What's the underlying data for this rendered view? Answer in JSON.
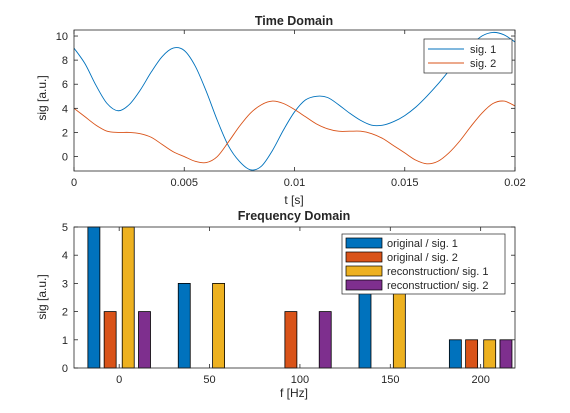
{
  "chart_data": [
    {
      "type": "line",
      "title": "Time Domain",
      "xlabel": "t [s]",
      "ylabel": "sig [a.u.]",
      "xlim": [
        0,
        0.02
      ],
      "ylim": [
        -1.2,
        10.5
      ],
      "xticks": [
        0,
        0.005,
        0.01,
        0.015,
        0.02
      ],
      "xtick_labels": [
        "0",
        "0.005",
        "0.01",
        "0.015",
        "0.02"
      ],
      "yticks": [
        0,
        2,
        4,
        6,
        8,
        10
      ],
      "ytick_labels": [
        "0",
        "2",
        "4",
        "6",
        "8",
        "10"
      ],
      "legend_position": "top-right",
      "grid": false,
      "series": [
        {
          "name": "sig. 1",
          "color": "#0072BD",
          "x": [
            0,
            0.0005,
            0.001,
            0.0015,
            0.002,
            0.0025,
            0.003,
            0.0035,
            0.004,
            0.0045,
            0.005,
            0.0055,
            0.006,
            0.0065,
            0.007,
            0.0075,
            0.008,
            0.0085,
            0.009,
            0.0095,
            0.01,
            0.0105,
            0.011,
            0.0115,
            0.012,
            0.0125,
            0.013,
            0.0135,
            0.014,
            0.0145,
            0.015,
            0.0155,
            0.016,
            0.0165,
            0.017,
            0.0175,
            0.018,
            0.0185,
            0.019,
            0.0195,
            0.02
          ],
          "y": [
            9.0,
            7.7,
            5.9,
            4.4,
            3.8,
            4.3,
            5.5,
            7.0,
            8.3,
            9.0,
            8.8,
            7.5,
            5.4,
            3.0,
            0.9,
            -0.4,
            -1.1,
            -0.8,
            0.5,
            2.2,
            3.7,
            4.7,
            5.0,
            4.9,
            4.3,
            3.6,
            3.0,
            2.6,
            2.6,
            2.9,
            3.4,
            4.1,
            5.0,
            6.0,
            7.1,
            8.2,
            9.2,
            10.0,
            10.3,
            10.1,
            9.5
          ]
        },
        {
          "name": "sig. 2",
          "color": "#D95319",
          "x": [
            0,
            0.0005,
            0.001,
            0.0015,
            0.002,
            0.0025,
            0.003,
            0.0035,
            0.004,
            0.0045,
            0.005,
            0.0055,
            0.006,
            0.0065,
            0.007,
            0.0075,
            0.008,
            0.0085,
            0.009,
            0.0095,
            0.01,
            0.0105,
            0.011,
            0.0115,
            0.012,
            0.0125,
            0.013,
            0.0135,
            0.014,
            0.0145,
            0.015,
            0.0155,
            0.016,
            0.0165,
            0.017,
            0.0175,
            0.018,
            0.0185,
            0.019,
            0.0195,
            0.02
          ],
          "y": [
            4.0,
            3.3,
            2.6,
            2.1,
            2.0,
            2.0,
            1.9,
            1.6,
            1.0,
            0.4,
            0.0,
            -0.4,
            -0.5,
            0.0,
            1.2,
            2.5,
            3.6,
            4.3,
            4.6,
            4.4,
            3.9,
            3.3,
            2.7,
            2.3,
            2.1,
            2.1,
            2.1,
            1.9,
            1.5,
            0.9,
            0.3,
            -0.3,
            -0.6,
            -0.4,
            0.3,
            1.3,
            2.5,
            3.6,
            4.4,
            4.6,
            4.2
          ]
        }
      ]
    },
    {
      "type": "bar",
      "title": "Frequency Domain",
      "xlabel": "f [Hz]",
      "ylabel": "sig [a.u.]",
      "xlim": [
        -25,
        219
      ],
      "ylim": [
        0,
        5
      ],
      "xticks": [
        0,
        50,
        100,
        150,
        200
      ],
      "xtick_labels": [
        "0",
        "50",
        "100",
        "150",
        "200"
      ],
      "yticks": [
        0,
        1,
        2,
        3,
        4,
        5
      ],
      "ytick_labels": [
        "0",
        "1",
        "2",
        "3",
        "4",
        "5"
      ],
      "legend_position": "top-right",
      "grid": false,
      "series": [
        {
          "name": "original / sig. 1",
          "color": "#0072BD",
          "x": [
            -14,
            36,
            136,
            186
          ],
          "values": [
            5,
            3,
            3,
            1
          ]
        },
        {
          "name": "original / sig. 2",
          "color": "#D95319",
          "x": [
            -5,
            95,
            195
          ],
          "values": [
            2,
            2,
            1
          ]
        },
        {
          "name": "reconstruction/ sig. 1",
          "color": "#EDB120",
          "x": [
            5,
            55,
            155,
            205
          ],
          "values": [
            5,
            3,
            3,
            1
          ]
        },
        {
          "name": "reconstruction/ sig. 2",
          "color": "#7E2F8E",
          "x": [
            14,
            114,
            214
          ],
          "values": [
            2,
            2,
            1
          ]
        }
      ]
    }
  ]
}
